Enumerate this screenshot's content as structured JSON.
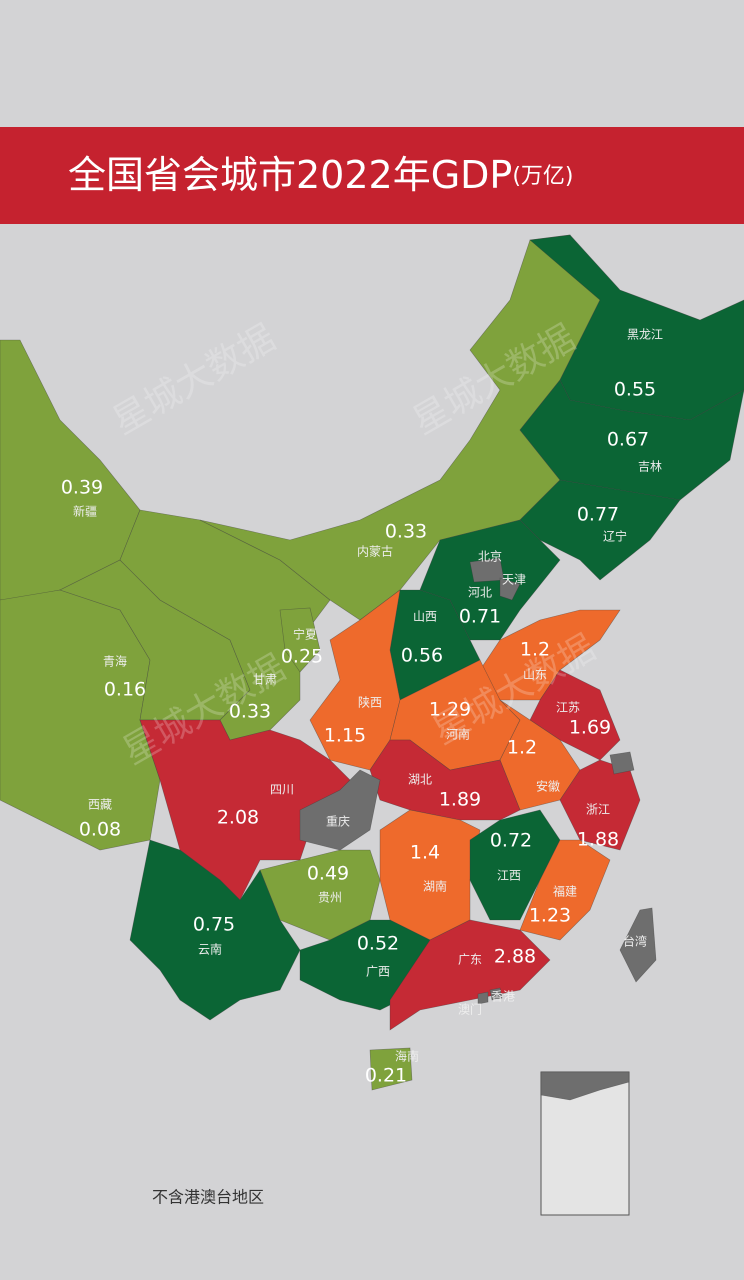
{
  "header": {
    "title": "全国省会城市2022年GDP",
    "unit": "(万亿)"
  },
  "regions": [
    {
      "name": "新疆",
      "value": 0.39,
      "color": "#7fa23c"
    },
    {
      "name": "西藏",
      "value": 0.08,
      "color": "#7fa23c"
    },
    {
      "name": "青海",
      "value": 0.16,
      "color": "#7fa23c"
    },
    {
      "name": "甘肃",
      "value": 0.33,
      "color": "#7fa23c"
    },
    {
      "name": "宁夏",
      "value": 0.25,
      "color": "#7fa23c"
    },
    {
      "name": "内蒙古",
      "value": 0.33,
      "color": "#7fa23c"
    },
    {
      "name": "黑龙江",
      "value": 0.55,
      "color": "#0b6535"
    },
    {
      "name": "吉林",
      "value": 0.67,
      "color": "#0b6535"
    },
    {
      "name": "辽宁",
      "value": 0.77,
      "color": "#0b6535"
    },
    {
      "name": "河北",
      "value": 0.71,
      "color": "#0b6535"
    },
    {
      "name": "山西",
      "value": 0.56,
      "color": "#0b6535"
    },
    {
      "name": "陕西",
      "value": 1.15,
      "color": "#ee6a2c"
    },
    {
      "name": "山东",
      "value": 1.2,
      "color": "#ee6a2c"
    },
    {
      "name": "河南",
      "value": 1.29,
      "color": "#ee6a2c"
    },
    {
      "name": "江苏",
      "value": 1.69,
      "color": "#c52a35"
    },
    {
      "name": "安徽",
      "value": 1.2,
      "color": "#ee6a2c"
    },
    {
      "name": "浙江",
      "value": 1.88,
      "color": "#c52a35"
    },
    {
      "name": "湖北",
      "value": 1.89,
      "color": "#c52a35"
    },
    {
      "name": "四川",
      "value": 2.08,
      "color": "#c52a35"
    },
    {
      "name": "湖南",
      "value": 1.4,
      "color": "#ee6a2c"
    },
    {
      "name": "江西",
      "value": 0.72,
      "color": "#0b6535"
    },
    {
      "name": "福建",
      "value": 1.23,
      "color": "#ee6a2c"
    },
    {
      "name": "贵州",
      "value": 0.49,
      "color": "#7fa23c"
    },
    {
      "name": "云南",
      "value": 0.75,
      "color": "#0b6535"
    },
    {
      "name": "广西",
      "value": 0.52,
      "color": "#0b6535"
    },
    {
      "name": "广东",
      "value": 2.88,
      "color": "#c52a35"
    },
    {
      "name": "海南",
      "value": 0.21,
      "color": "#7fa23c"
    },
    {
      "name": "北京",
      "color": "#6e6e6e"
    },
    {
      "name": "天津",
      "color": "#6e6e6e"
    },
    {
      "name": "重庆",
      "color": "#6e6e6e"
    },
    {
      "name": "台湾",
      "color": "#6e6e6e"
    },
    {
      "name": "澳门",
      "color": "#6e6e6e"
    },
    {
      "name": "香港",
      "color": "#6e6e6e"
    }
  ],
  "footnote": "不含港澳台地区",
  "watermark": "星城大数据"
}
